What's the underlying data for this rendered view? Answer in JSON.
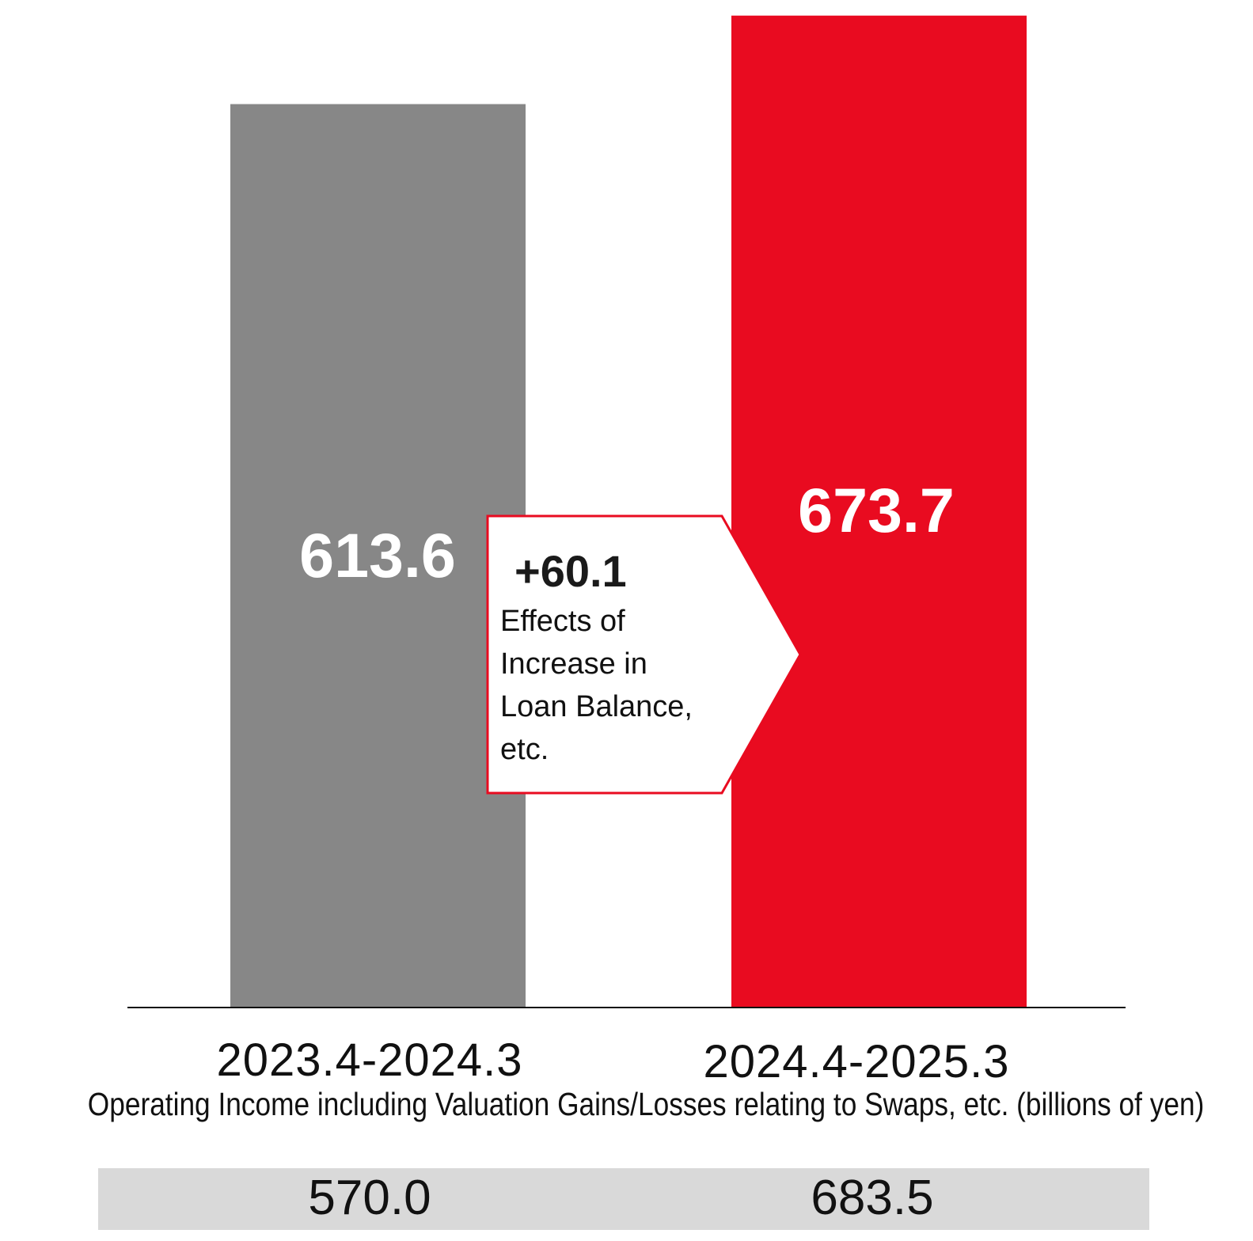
{
  "chart_data": {
    "type": "bar",
    "categories": [
      "2023.4-2024.3",
      "2024.4-2025.3"
    ],
    "values": [
      613.6,
      673.7
    ],
    "value_labels": [
      "613.6",
      "673.7"
    ],
    "colors": [
      "#878787",
      "#e90b20"
    ],
    "baseline": 0,
    "ylim": [
      0,
      680
    ],
    "callout": {
      "value": "+60.1",
      "text_lines": [
        "Effects of",
        "Increase in",
        "Loan Balance,",
        "etc."
      ],
      "border_color": "#e90b20"
    },
    "subtitle": "Operating Income including Valuation Gains/Losses relating to Swaps, etc. (billions of yen)",
    "secondary_values": [
      "570.0",
      "683.5"
    ]
  }
}
